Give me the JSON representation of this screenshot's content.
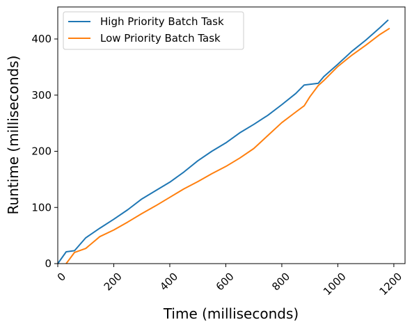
{
  "chart_data": {
    "type": "line",
    "title": "",
    "xlabel": "Time (milliseconds)",
    "ylabel": "Runtime (milliseconds)",
    "xlim": [
      0,
      1240
    ],
    "ylim": [
      0,
      457
    ],
    "xticks": [
      0,
      200,
      400,
      600,
      800,
      1000,
      1200
    ],
    "xtick_labels": [
      "0",
      "200",
      "400",
      "600",
      "800",
      "1000",
      "1200"
    ],
    "yticks": [
      0,
      100,
      200,
      300,
      400
    ],
    "ytick_labels": [
      "0",
      "100",
      "200",
      "300",
      "400"
    ],
    "grid": false,
    "legend_position": "top-left",
    "series": [
      {
        "name": "High Priority Batch Task",
        "color": "#1f77b4",
        "x": [
          0,
          30,
          60,
          100,
          150,
          200,
          250,
          300,
          350,
          400,
          450,
          500,
          550,
          600,
          650,
          700,
          750,
          800,
          850,
          880,
          930,
          950,
          1000,
          1050,
          1100,
          1150,
          1180
        ],
        "y": [
          0,
          21,
          23,
          46,
          63,
          79,
          96,
          115,
          130,
          145,
          163,
          183,
          200,
          215,
          233,
          248,
          264,
          283,
          303,
          318,
          321,
          333,
          355,
          378,
          398,
          420,
          434
        ]
      },
      {
        "name": "Low Priority Batch Task",
        "color": "#ff7f0e",
        "x": [
          30,
          60,
          100,
          150,
          200,
          250,
          300,
          350,
          400,
          450,
          500,
          550,
          600,
          650,
          700,
          750,
          800,
          850,
          880,
          900,
          930,
          950,
          1000,
          1050,
          1100,
          1150,
          1185
        ],
        "y": [
          0,
          20,
          27,
          48,
          60,
          74,
          89,
          103,
          118,
          133,
          146,
          160,
          173,
          188,
          205,
          228,
          251,
          270,
          281,
          297,
          317,
          326,
          351,
          371,
          389,
          408,
          419
        ]
      }
    ]
  }
}
